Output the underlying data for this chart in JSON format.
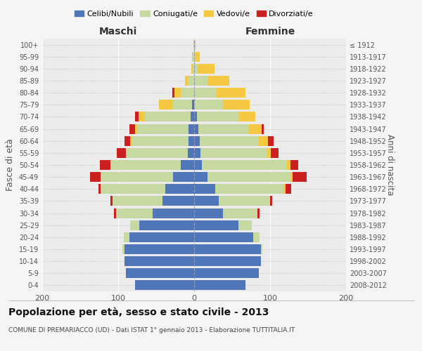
{
  "age_groups": [
    "0-4",
    "5-9",
    "10-14",
    "15-19",
    "20-24",
    "25-29",
    "30-34",
    "35-39",
    "40-44",
    "45-49",
    "50-54",
    "55-59",
    "60-64",
    "65-69",
    "70-74",
    "75-79",
    "80-84",
    "85-89",
    "90-94",
    "95-99",
    "100+"
  ],
  "birth_years": [
    "2008-2012",
    "2003-2007",
    "1998-2002",
    "1993-1997",
    "1988-1992",
    "1983-1987",
    "1978-1982",
    "1973-1977",
    "1968-1972",
    "1963-1967",
    "1958-1962",
    "1953-1957",
    "1948-1952",
    "1943-1947",
    "1938-1942",
    "1933-1937",
    "1928-1932",
    "1923-1927",
    "1918-1922",
    "1913-1917",
    "≤ 1912"
  ],
  "colors": {
    "celibi": "#4e76b8",
    "coniugati": "#c5d9a0",
    "vedovi": "#f5c842",
    "divorziati": "#cc2020"
  },
  "maschi": {
    "celibi": [
      78,
      90,
      92,
      92,
      85,
      72,
      55,
      42,
      38,
      28,
      18,
      8,
      7,
      7,
      5,
      3,
      0,
      0,
      0,
      0,
      0
    ],
    "coniugati": [
      0,
      0,
      0,
      2,
      8,
      12,
      48,
      65,
      85,
      95,
      92,
      82,
      75,
      68,
      60,
      25,
      18,
      8,
      2,
      2,
      1
    ],
    "vedovi": [
      0,
      0,
      0,
      0,
      0,
      0,
      0,
      0,
      0,
      0,
      0,
      0,
      2,
      3,
      8,
      18,
      8,
      4,
      2,
      1,
      0
    ],
    "divorziati": [
      0,
      0,
      0,
      0,
      0,
      0,
      3,
      3,
      3,
      14,
      14,
      12,
      8,
      7,
      5,
      0,
      3,
      0,
      0,
      0,
      0
    ]
  },
  "femmine": {
    "celibi": [
      68,
      85,
      88,
      88,
      78,
      58,
      38,
      32,
      28,
      18,
      10,
      8,
      7,
      6,
      4,
      0,
      0,
      0,
      0,
      0,
      0
    ],
    "coniugati": [
      0,
      0,
      0,
      2,
      8,
      18,
      45,
      68,
      90,
      110,
      112,
      88,
      78,
      65,
      55,
      38,
      30,
      18,
      5,
      2,
      0
    ],
    "vedovi": [
      0,
      0,
      0,
      0,
      0,
      0,
      0,
      0,
      2,
      2,
      5,
      5,
      12,
      18,
      22,
      35,
      38,
      28,
      22,
      5,
      2
    ],
    "divorziati": [
      0,
      0,
      0,
      0,
      0,
      0,
      3,
      3,
      8,
      18,
      10,
      10,
      8,
      3,
      0,
      0,
      0,
      0,
      0,
      0,
      0
    ]
  },
  "xlim": 200,
  "title": "Popolazione per età, sesso e stato civile - 2013",
  "subtitle": "COMUNE DI PREMARIACCO (UD) - Dati ISTAT 1° gennaio 2013 - Elaborazione TUTTITALIA.IT",
  "ylabel_left": "Fasce di età",
  "ylabel_right": "Anni di nascita",
  "legend_labels": [
    "Celibi/Nubili",
    "Coniugati/e",
    "Vedovi/e",
    "Divorziati/e"
  ],
  "maschi_label": "Maschi",
  "femmine_label": "Femmine",
  "background_color": "#f5f5f5",
  "plot_bg_color": "#ebebeb"
}
